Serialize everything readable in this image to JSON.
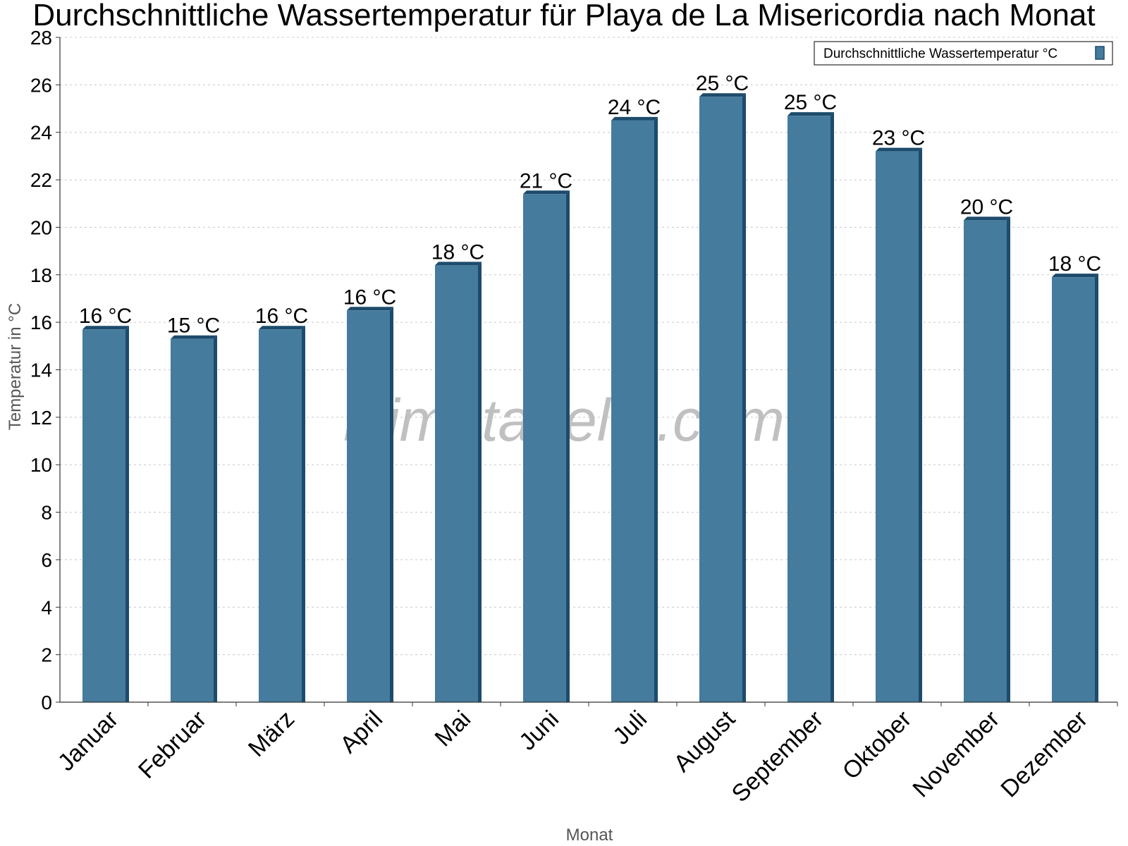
{
  "chart_data": {
    "type": "bar",
    "title": "Durchschnittliche Wassertemperatur für Playa de La Misericordia nach Monat",
    "xlabel": "Monat",
    "ylabel": "Temperatur in °C",
    "categories": [
      "Januar",
      "Februar",
      "März",
      "April",
      "Mai",
      "Juni",
      "Juli",
      "August",
      "September",
      "Oktober",
      "November",
      "Dezember"
    ],
    "series": [
      {
        "name": "Durchschnittliche Wassertemperatur °C",
        "values": [
          15.7,
          15.3,
          15.7,
          16.5,
          18.4,
          21.4,
          24.5,
          25.5,
          24.7,
          23.2,
          20.3,
          17.9
        ],
        "labels": [
          "16 °C",
          "15 °C",
          "16 °C",
          "16 °C",
          "18 °C",
          "21 °C",
          "24 °C",
          "25 °C",
          "25 °C",
          "23 °C",
          "20 °C",
          "18 °C"
        ],
        "color": "#457b9d",
        "edge_color": "#1d4b6c"
      }
    ],
    "ylim": [
      0,
      28
    ],
    "yticks": [
      0,
      2,
      4,
      6,
      8,
      10,
      12,
      14,
      16,
      18,
      20,
      22,
      24,
      26,
      28
    ],
    "grid": true,
    "legend": "top-right"
  },
  "watermark": "klimatabelle.com"
}
